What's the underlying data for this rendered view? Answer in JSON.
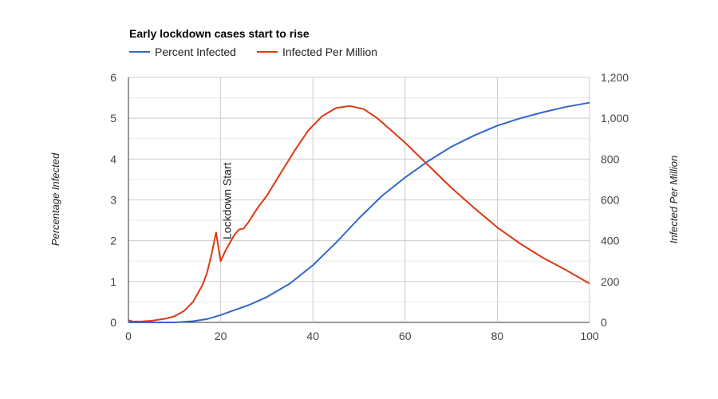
{
  "chart_data": {
    "type": "line",
    "title": "Early lockdown cases start to rise",
    "xlim": [
      0,
      100
    ],
    "x_ticks": [
      "0",
      "20",
      "40",
      "60",
      "80",
      "100"
    ],
    "y_left": {
      "label": "Percentage Infected",
      "lim": [
        0,
        6
      ],
      "ticks": [
        "0",
        "1",
        "2",
        "3",
        "4",
        "5",
        "6"
      ]
    },
    "y_right": {
      "label": "Infected Per Million",
      "lim": [
        0,
        1200
      ],
      "ticks": [
        "0",
        "200",
        "400",
        "600",
        "800",
        "1,000",
        "1,200"
      ]
    },
    "grid": true,
    "legend_position": "top-left",
    "annotation": {
      "text": "Lockdown Start",
      "x": 20
    },
    "series": [
      {
        "name": "Percent Infected",
        "axis": "left",
        "color": "#3366cc",
        "points": [
          [
            0,
            0
          ],
          [
            5,
            0
          ],
          [
            10,
            0
          ],
          [
            14,
            0.03
          ],
          [
            17,
            0.08
          ],
          [
            20,
            0.18
          ],
          [
            23,
            0.3
          ],
          [
            26,
            0.42
          ],
          [
            30,
            0.62
          ],
          [
            35,
            0.95
          ],
          [
            40,
            1.4
          ],
          [
            45,
            1.95
          ],
          [
            50,
            2.55
          ],
          [
            55,
            3.1
          ],
          [
            60,
            3.55
          ],
          [
            65,
            3.95
          ],
          [
            70,
            4.3
          ],
          [
            75,
            4.58
          ],
          [
            80,
            4.82
          ],
          [
            85,
            5.0
          ],
          [
            90,
            5.15
          ],
          [
            95,
            5.28
          ],
          [
            100,
            5.38
          ]
        ]
      },
      {
        "name": "Infected Per Million",
        "axis": "right",
        "color": "#dc3912",
        "points": [
          [
            0,
            10
          ],
          [
            1,
            4
          ],
          [
            3,
            5
          ],
          [
            5,
            8
          ],
          [
            8,
            18
          ],
          [
            10,
            30
          ],
          [
            12,
            55
          ],
          [
            14,
            100
          ],
          [
            16,
            180
          ],
          [
            17,
            240
          ],
          [
            18,
            330
          ],
          [
            19,
            440
          ],
          [
            20,
            300
          ],
          [
            21,
            350
          ],
          [
            22,
            390
          ],
          [
            23,
            430
          ],
          [
            24,
            455
          ],
          [
            25,
            460
          ],
          [
            26,
            490
          ],
          [
            28,
            560
          ],
          [
            30,
            620
          ],
          [
            33,
            730
          ],
          [
            36,
            840
          ],
          [
            39,
            940
          ],
          [
            42,
            1010
          ],
          [
            45,
            1050
          ],
          [
            48,
            1060
          ],
          [
            51,
            1045
          ],
          [
            54,
            1000
          ],
          [
            57,
            940
          ],
          [
            60,
            880
          ],
          [
            65,
            770
          ],
          [
            70,
            660
          ],
          [
            75,
            560
          ],
          [
            80,
            465
          ],
          [
            85,
            385
          ],
          [
            90,
            315
          ],
          [
            95,
            255
          ],
          [
            100,
            190
          ]
        ]
      }
    ]
  }
}
